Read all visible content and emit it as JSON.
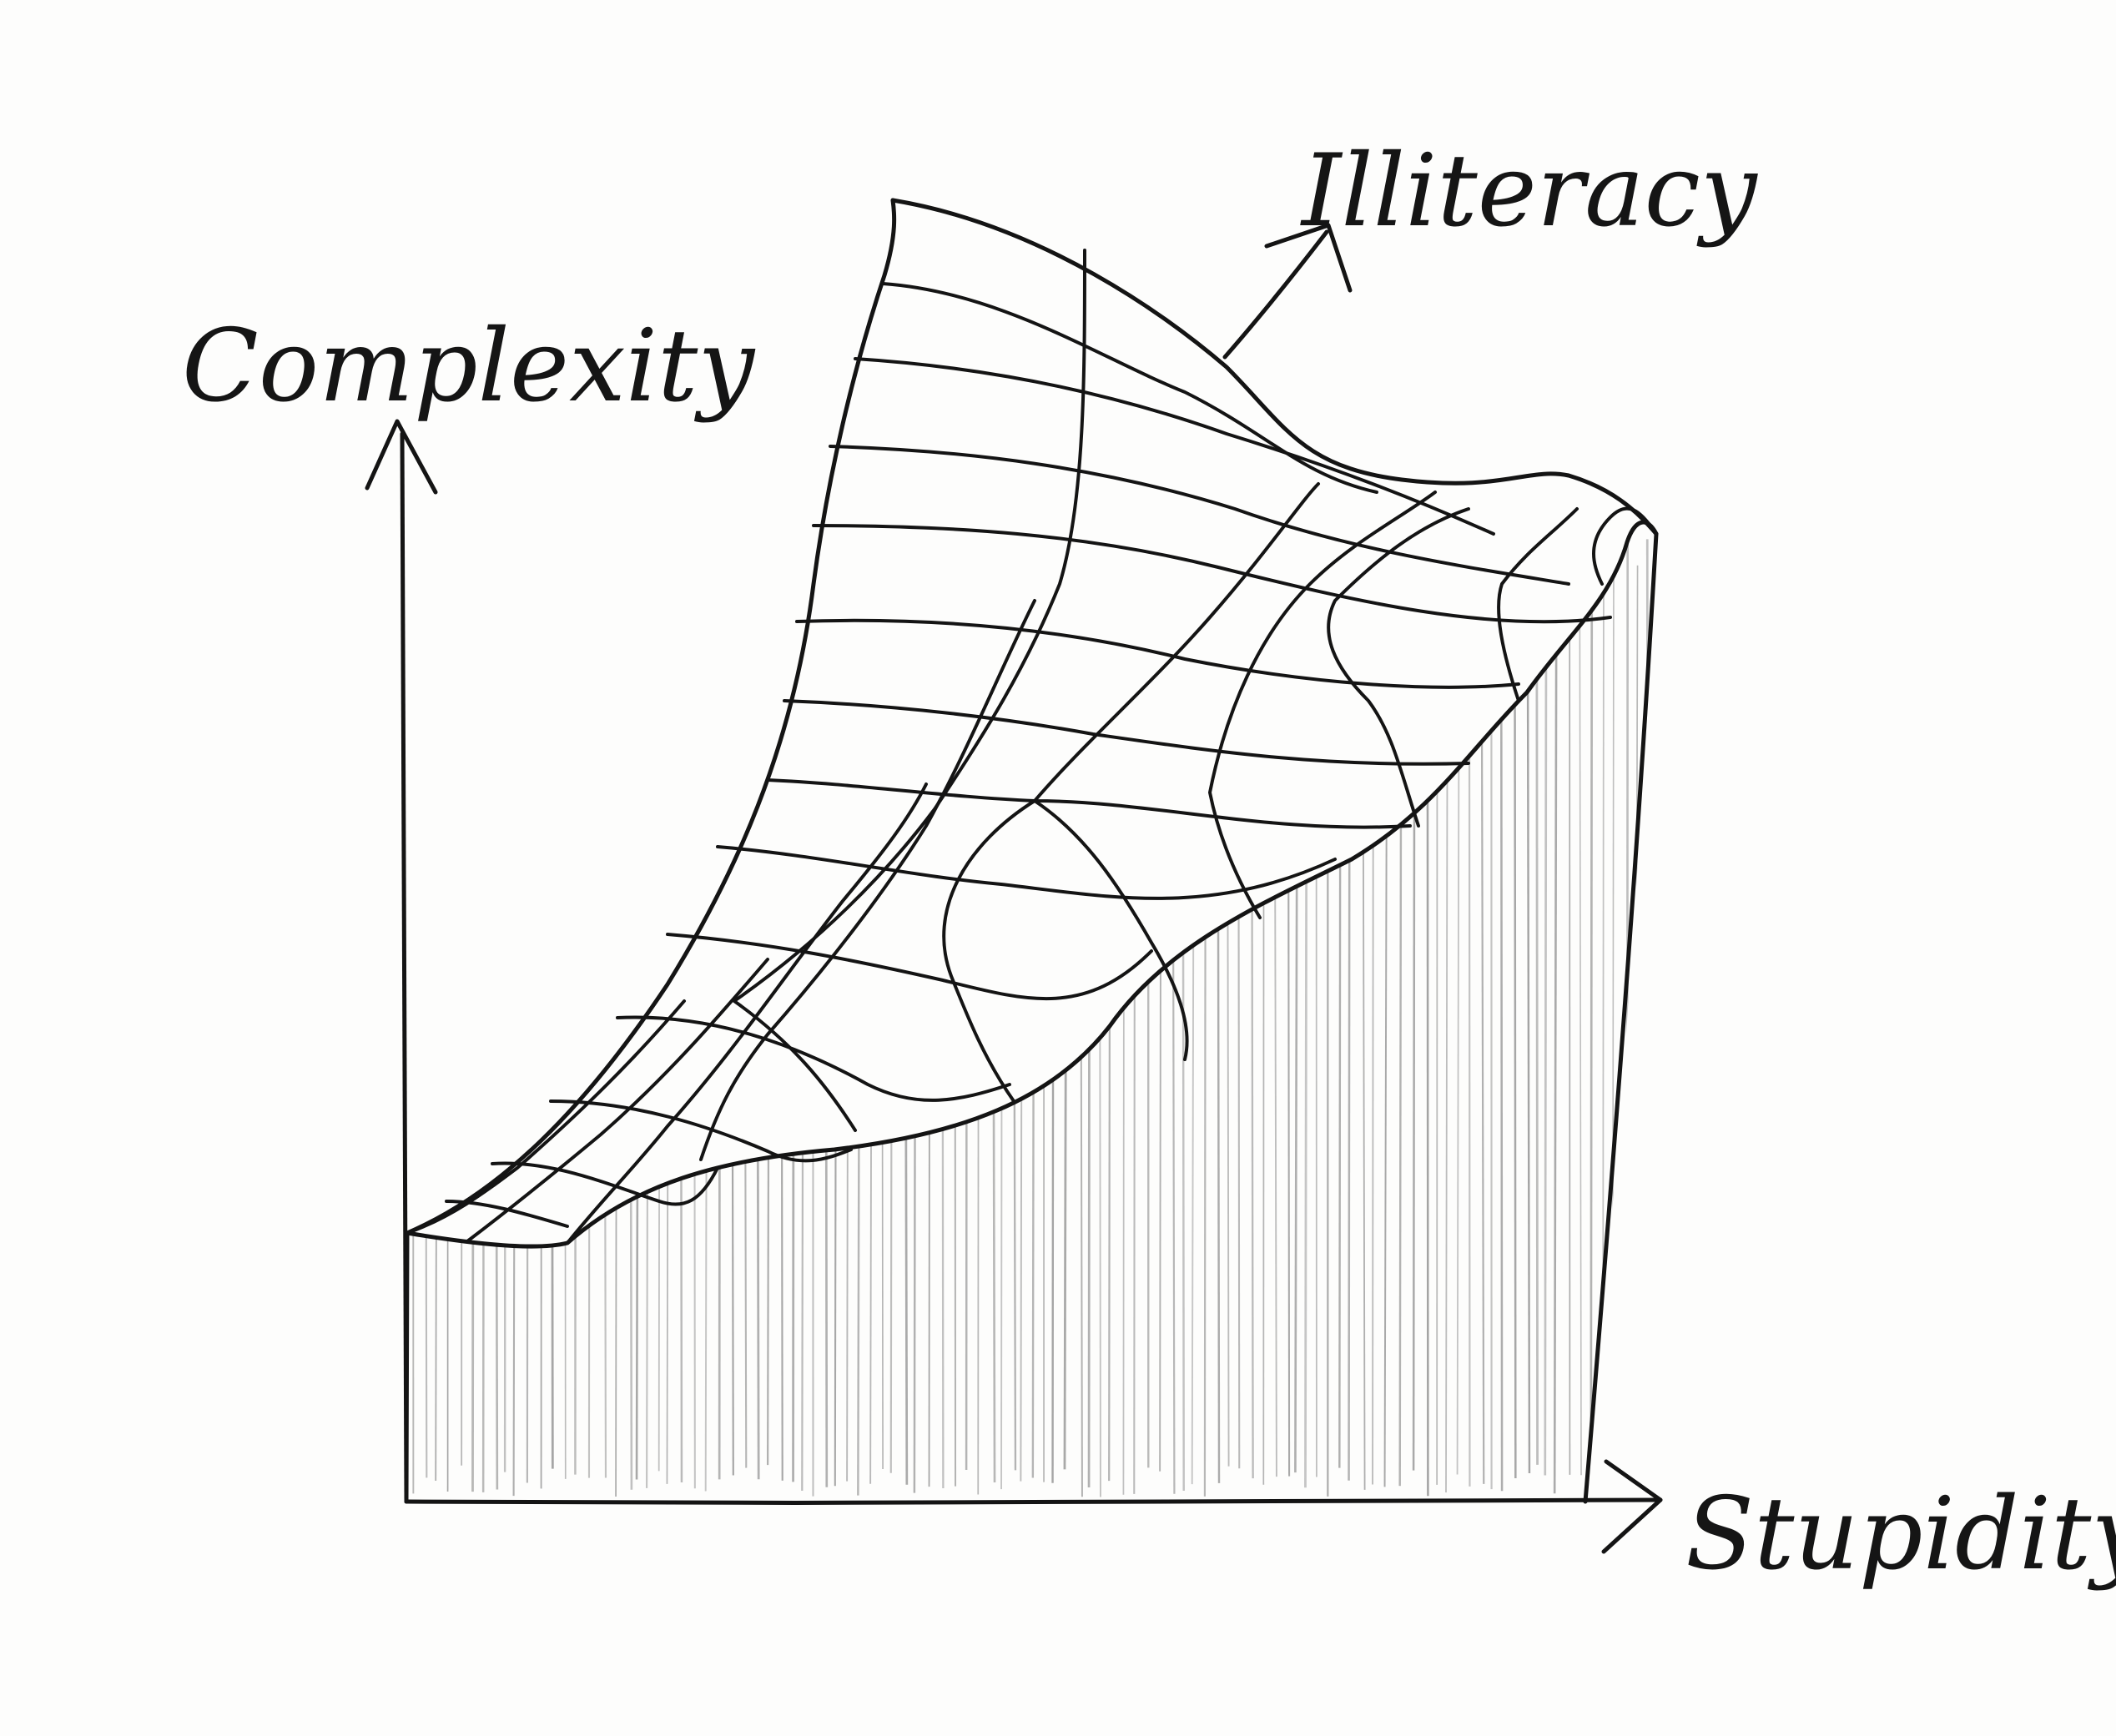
{
  "diagram": {
    "axes": {
      "vertical": "Complexity",
      "horizontal": "Stupidity",
      "depth": "Illiteracy"
    },
    "colors": {
      "ink": "#141414",
      "hatch": "#9a9a9a",
      "paper": "#fdfdfc"
    },
    "surface": {
      "style": "hand-drawn wireframe surface rising from the origin toward high Stupidity and Illiteracy, front face hatched with vertical pencil lines"
    }
  }
}
